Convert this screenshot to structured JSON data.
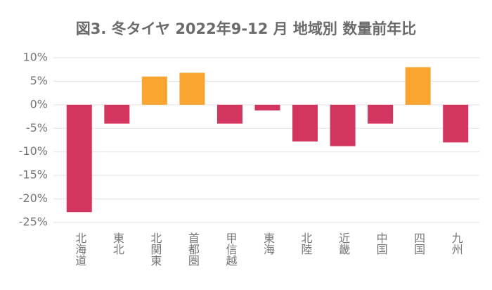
{
  "chart_data": {
    "type": "bar",
    "title": "図3. 冬タイヤ 2022年9-12 月 地域別 数量前年比",
    "categories": [
      "北海道",
      "東北",
      "北関東",
      "首都圏",
      "甲信越",
      "東海",
      "北陸",
      "近畿",
      "中国",
      "四国",
      "九州"
    ],
    "values": [
      -22.8,
      -4,
      6,
      6.8,
      -4,
      -1.2,
      -7.8,
      -8.8,
      -4,
      8,
      -8
    ],
    "positive_color": "#f9a52f",
    "negative_color": "#d2365f",
    "ylim": [
      -25,
      10
    ],
    "yticks": [
      {
        "value": -25,
        "label": "-25%"
      },
      {
        "value": -20,
        "label": "-20%"
      },
      {
        "value": -15,
        "label": "-15%"
      },
      {
        "value": -10,
        "label": "-10%"
      },
      {
        "value": -5,
        "label": "-5%"
      },
      {
        "value": 0,
        "label": "0%"
      },
      {
        "value": 5,
        "label": "5%"
      },
      {
        "value": 10,
        "label": "10%"
      }
    ],
    "grid": true
  }
}
